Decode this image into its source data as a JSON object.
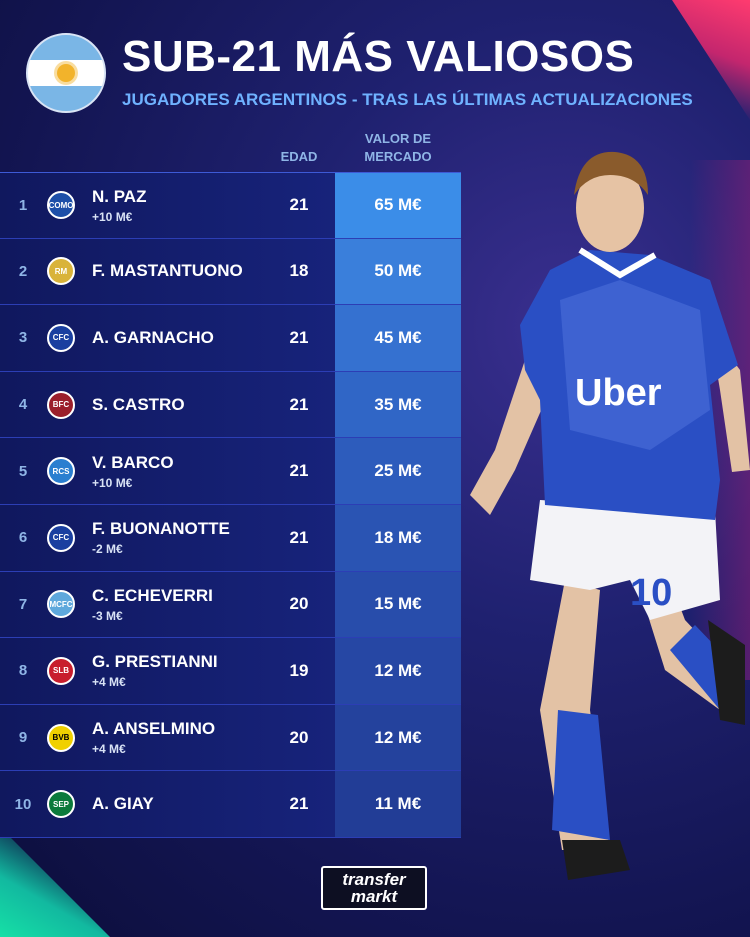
{
  "header": {
    "title": "SUB-21 MÁS VALIOSOS",
    "subtitle": "JUGADORES ARGENTINOS - TRAS LAS ÚLTIMAS ACTUALIZACIONES"
  },
  "columns": {
    "age": "EDAD",
    "value_line1": "VALOR DE",
    "value_line2": "MERCADO"
  },
  "players": [
    {
      "rank": "1",
      "club": "COMO",
      "club_icon": "como-crest-icon",
      "name": "N. PAZ",
      "change": "+10 M€",
      "age": "21",
      "value": "65 M€",
      "value_color": "#3b8de8"
    },
    {
      "rank": "2",
      "club": "RM",
      "club_icon": "real-madrid-crest-icon",
      "name": "F. MASTANTUONO",
      "change": "",
      "age": "18",
      "value": "50 M€",
      "value_color": "#3a7fdb"
    },
    {
      "rank": "3",
      "club": "CFC",
      "club_icon": "chelsea-crest-icon",
      "name": "A. GARNACHO",
      "change": "",
      "age": "21",
      "value": "45 M€",
      "value_color": "#3571d0"
    },
    {
      "rank": "4",
      "club": "BFC",
      "club_icon": "bologna-crest-icon",
      "name": "S. CASTRO",
      "change": "",
      "age": "21",
      "value": "35 M€",
      "value_color": "#3066c6"
    },
    {
      "rank": "5",
      "club": "RCS",
      "club_icon": "strasbourg-crest-icon",
      "name": "V. BARCO",
      "change": "+10 M€",
      "age": "21",
      "value": "25 M€",
      "value_color": "#2d5cbc"
    },
    {
      "rank": "6",
      "club": "CFC",
      "club_icon": "chelsea-crest-icon",
      "name": "F. BUONANOTTE",
      "change": "-2 M€",
      "age": "21",
      "value": "18 M€",
      "value_color": "#2a54b3"
    },
    {
      "rank": "7",
      "club": "MCFC",
      "club_icon": "manchester-city-crest-icon",
      "name": "C. ECHEVERRI",
      "change": "-3 M€",
      "age": "20",
      "value": "15 M€",
      "value_color": "#284dab"
    },
    {
      "rank": "8",
      "club": "SLB",
      "club_icon": "benfica-crest-icon",
      "name": "G. PRESTIANNI",
      "change": "+4 M€",
      "age": "19",
      "value": "12 M€",
      "value_color": "#2647a4"
    },
    {
      "rank": "9",
      "club": "BVB",
      "club_icon": "dortmund-crest-icon",
      "name": "A. ANSELMINO",
      "change": "+4 M€",
      "age": "20",
      "value": "12 M€",
      "value_color": "#24429d"
    },
    {
      "rank": "10",
      "club": "SEP",
      "club_icon": "palmeiras-crest-icon",
      "name": "A. GIAY",
      "change": "",
      "age": "21",
      "value": "11 M€",
      "value_color": "#223d96"
    }
  ],
  "player_image": {
    "jersey_sponsor": "Uber",
    "jersey_number": "10"
  },
  "logo": {
    "line1": "transfer",
    "line2": "markt"
  },
  "colors": {
    "accent_blue": "#6fb2ff",
    "background": "#1f2170",
    "jersey": "#2a4fc4"
  }
}
